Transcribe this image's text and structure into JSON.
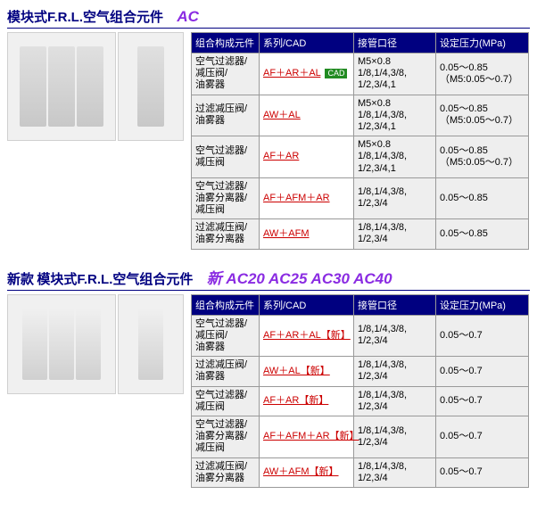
{
  "section1": {
    "title_main": "模块式F.R.L.空气组合元件",
    "title_sub": "AC",
    "headers": [
      "组合构成元件",
      "系列/CAD",
      "接管口径",
      "设定压力(MPa)"
    ],
    "rows": [
      {
        "comp": "空气过滤器/\n减压阀/\n油雾器",
        "series": "AF＋AR＋AL",
        "cad": true,
        "port": "M5×0.8\n1/8,1/4,3/8,\n1/2,3/4,1",
        "press": "0.05～0.85\n（M5:0.05～0.7）"
      },
      {
        "comp": "过滤减压阀/\n油雾器",
        "series": "AW＋AL",
        "cad": false,
        "port": "M5×0.8\n1/8,1/4,3/8,\n1/2,3/4,1",
        "press": "0.05～0.85\n（M5:0.05～0.7）"
      },
      {
        "comp": "空气过滤器/\n减压阀",
        "series": "AF＋AR",
        "cad": false,
        "port": "M5×0.8\n1/8,1/4,3/8,\n1/2,3/4,1",
        "press": "0.05～0.85\n（M5:0.05～0.7）"
      },
      {
        "comp": "空气过滤器/\n油雾分离器/\n减压阀",
        "series": "AF＋AFM＋AR",
        "cad": false,
        "port": "1/8,1/4,3/8,\n1/2,3/4",
        "press": "0.05～0.85"
      },
      {
        "comp": "过滤减压阀/\n油雾分离器",
        "series": "AW＋AFM",
        "cad": false,
        "port": "1/8,1/4,3/8,\n1/2,3/4",
        "press": "0.05～0.85"
      }
    ],
    "cad_label": "CAD"
  },
  "section2": {
    "title_prefix": "新款",
    "title_main": "模块式F.R.L.空气组合元件",
    "title_sub": "新 AC20 AC25 AC30 AC40",
    "headers": [
      "组合构成元件",
      "系列/CAD",
      "接管口径",
      "设定压力(MPa)"
    ],
    "rows": [
      {
        "comp": "空气过滤器/\n减压阀/\n油雾器",
        "series": "AF＋AR＋AL【新】",
        "port": "1/8,1/4,3/8,\n1/2,3/4",
        "press": "0.05～0.7"
      },
      {
        "comp": "过滤减压阀/\n油雾器",
        "series": "AW＋AL【新】",
        "port": "1/8,1/4,3/8,\n1/2,3/4",
        "press": "0.05～0.7"
      },
      {
        "comp": "空气过滤器/\n减压阀",
        "series": "AF＋AR【新】",
        "port": "1/8,1/4,3/8,\n1/2,3/4",
        "press": "0.05～0.7"
      },
      {
        "comp": "空气过滤器/\n油雾分离器/\n减压阀",
        "series": "AF＋AFM＋AR【新】",
        "port": "1/8,1/4,3/8,\n1/2,3/4",
        "press": "0.05～0.7"
      },
      {
        "comp": "过滤减压阀/\n油雾分离器",
        "series": "AW＋AFM【新】",
        "port": "1/8,1/4,3/8,\n1/2,3/4",
        "press": "0.05～0.7"
      }
    ]
  },
  "colors": {
    "header_bg": "#000080",
    "header_fg": "#ffffff",
    "cell_bg": "#eeeeee",
    "series_bg": "#ffffff",
    "link": "#cc0000",
    "border": "#999999",
    "title_main": "#000080",
    "title_sub": "#8a2be2",
    "cad_bg": "#228b22"
  }
}
